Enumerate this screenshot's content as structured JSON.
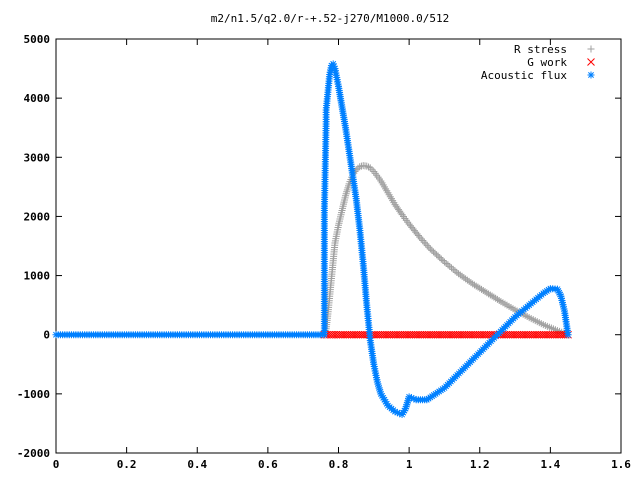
{
  "chart_data": {
    "type": "scatter",
    "title": "m2/n1.5/q2.0/r-+.52-j270/M1000.0/512",
    "xlabel": "",
    "ylabel": "",
    "xlim": [
      0,
      1.6
    ],
    "ylim": [
      -2000,
      5000
    ],
    "x_ticks": [
      "0",
      "0.2",
      "0.4",
      "0.6",
      "0.8",
      "1",
      "1.2",
      "1.4",
      "1.6"
    ],
    "y_ticks": [
      "5000",
      "4000",
      "3000",
      "2000",
      "1000",
      "0",
      "-1000",
      "-2000"
    ],
    "legend_position": "top-right",
    "grid": false,
    "series": [
      {
        "name": "R stress",
        "marker": "+",
        "color": "#a0a0a0",
        "points": [
          [
            0.76,
            0
          ],
          [
            0.765,
            100
          ],
          [
            0.77,
            350
          ],
          [
            0.775,
            650
          ],
          [
            0.78,
            950
          ],
          [
            0.785,
            1250
          ],
          [
            0.79,
            1550
          ],
          [
            0.8,
            1850
          ],
          [
            0.81,
            2100
          ],
          [
            0.82,
            2350
          ],
          [
            0.83,
            2550
          ],
          [
            0.84,
            2700
          ],
          [
            0.85,
            2790
          ],
          [
            0.86,
            2840
          ],
          [
            0.87,
            2860
          ],
          [
            0.88,
            2850
          ],
          [
            0.89,
            2820
          ],
          [
            0.9,
            2760
          ],
          [
            0.92,
            2600
          ],
          [
            0.94,
            2400
          ],
          [
            0.96,
            2200
          ],
          [
            0.98,
            2030
          ],
          [
            1.0,
            1870
          ],
          [
            1.03,
            1650
          ],
          [
            1.06,
            1450
          ],
          [
            1.1,
            1230
          ],
          [
            1.14,
            1030
          ],
          [
            1.18,
            860
          ],
          [
            1.22,
            710
          ],
          [
            1.26,
            560
          ],
          [
            1.3,
            420
          ],
          [
            1.34,
            290
          ],
          [
            1.38,
            170
          ],
          [
            1.42,
            70
          ],
          [
            1.45,
            0
          ]
        ]
      },
      {
        "name": "G work",
        "marker": "x",
        "color": "#ff0000",
        "points": [
          [
            0.76,
            0
          ],
          [
            0.8,
            0
          ],
          [
            0.85,
            0
          ],
          [
            0.9,
            0
          ],
          [
            0.95,
            0
          ],
          [
            1.0,
            0
          ],
          [
            1.05,
            0
          ],
          [
            1.1,
            0
          ],
          [
            1.15,
            0
          ],
          [
            1.2,
            0
          ],
          [
            1.25,
            0
          ],
          [
            1.3,
            0
          ],
          [
            1.35,
            0
          ],
          [
            1.4,
            0
          ],
          [
            1.45,
            0
          ]
        ]
      },
      {
        "name": "Acoustic flux",
        "marker": "*",
        "color": "#0080ff",
        "points": [
          [
            0.0,
            0
          ],
          [
            0.1,
            0
          ],
          [
            0.2,
            0
          ],
          [
            0.3,
            0
          ],
          [
            0.4,
            0
          ],
          [
            0.5,
            0
          ],
          [
            0.6,
            0
          ],
          [
            0.7,
            0
          ],
          [
            0.76,
            0
          ],
          [
            0.76,
            2100
          ],
          [
            0.765,
            3600
          ],
          [
            0.765,
            3800
          ],
          [
            0.77,
            4100
          ],
          [
            0.775,
            4400
          ],
          [
            0.78,
            4550
          ],
          [
            0.785,
            4580
          ],
          [
            0.79,
            4500
          ],
          [
            0.8,
            4200
          ],
          [
            0.81,
            3850
          ],
          [
            0.82,
            3500
          ],
          [
            0.83,
            3100
          ],
          [
            0.84,
            2700
          ],
          [
            0.85,
            2300
          ],
          [
            0.86,
            1800
          ],
          [
            0.87,
            1200
          ],
          [
            0.88,
            500
          ],
          [
            0.89,
            -100
          ],
          [
            0.9,
            -500
          ],
          [
            0.91,
            -800
          ],
          [
            0.92,
            -1000
          ],
          [
            0.94,
            -1200
          ],
          [
            0.96,
            -1300
          ],
          [
            0.98,
            -1350
          ],
          [
            0.99,
            -1250
          ],
          [
            1.0,
            -1050
          ],
          [
            1.02,
            -1100
          ],
          [
            1.05,
            -1100
          ],
          [
            1.1,
            -900
          ],
          [
            1.15,
            -600
          ],
          [
            1.2,
            -300
          ],
          [
            1.25,
            0
          ],
          [
            1.3,
            300
          ],
          [
            1.35,
            550
          ],
          [
            1.38,
            700
          ],
          [
            1.4,
            780
          ],
          [
            1.42,
            770
          ],
          [
            1.43,
            650
          ],
          [
            1.44,
            400
          ],
          [
            1.45,
            0
          ]
        ]
      }
    ]
  }
}
